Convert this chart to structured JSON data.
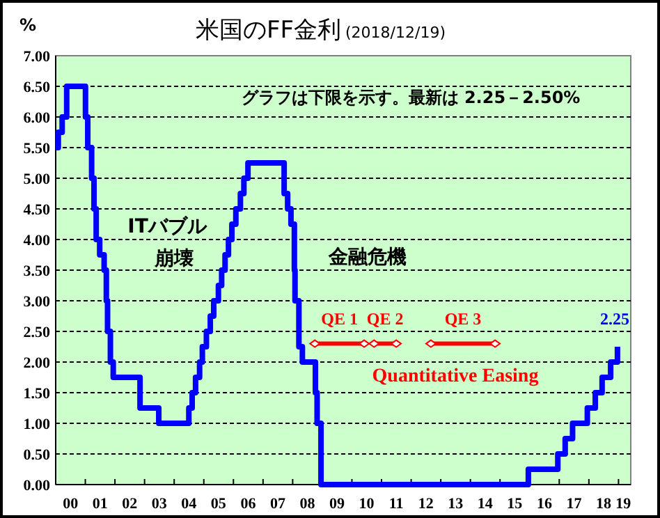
{
  "chart_data": {
    "type": "step",
    "title": "米国のFF金利",
    "subtitle": "(2018/12/19)",
    "ylabel": "%",
    "x": [
      "2000-01-01",
      "2000-02-02",
      "2000-03-21",
      "2000-05-16",
      "2001-01-03",
      "2001-01-31",
      "2001-03-20",
      "2001-04-18",
      "2001-05-15",
      "2001-06-27",
      "2001-08-21",
      "2001-09-17",
      "2001-10-02",
      "2001-11-06",
      "2001-12-11",
      "2002-11-06",
      "2003-06-25",
      "2004-06-30",
      "2004-08-10",
      "2004-09-21",
      "2004-11-10",
      "2004-12-14",
      "2005-02-02",
      "2005-03-22",
      "2005-05-03",
      "2005-06-30",
      "2005-08-09",
      "2005-09-20",
      "2005-11-01",
      "2005-12-13",
      "2006-01-31",
      "2006-03-28",
      "2006-05-10",
      "2006-06-29",
      "2007-09-18",
      "2007-10-31",
      "2007-12-11",
      "2008-01-22",
      "2008-01-30",
      "2008-03-18",
      "2008-04-30",
      "2008-10-08",
      "2008-10-29",
      "2008-12-16",
      "2015-12-16",
      "2016-12-14",
      "2017-03-15",
      "2017-06-14",
      "2017-12-13",
      "2018-03-21",
      "2018-06-13",
      "2018-09-26",
      "2018-12-19"
    ],
    "series": [
      {
        "color": "#0000ff",
        "values": [
          5.5,
          5.75,
          6.0,
          6.5,
          6.0,
          5.5,
          5.0,
          4.5,
          4.0,
          3.75,
          3.5,
          3.0,
          2.5,
          2.0,
          1.75,
          1.25,
          1.0,
          1.25,
          1.5,
          1.75,
          2.0,
          2.25,
          2.5,
          2.75,
          3.0,
          3.25,
          3.5,
          3.75,
          4.0,
          4.25,
          4.5,
          4.75,
          5.0,
          5.25,
          4.75,
          4.5,
          4.25,
          3.5,
          3.0,
          2.25,
          2.0,
          1.5,
          1.0,
          0.0,
          0.25,
          0.5,
          0.75,
          1.0,
          1.25,
          1.5,
          1.75,
          2.0,
          2.25
        ]
      },
      {
        "type": "line",
        "name": "QE 1",
        "color": "#ff0000",
        "marker": "diamond",
        "x": [
          "2008-10",
          "2010-06"
        ],
        "values": [
          2.3,
          2.3
        ]
      },
      {
        "type": "line",
        "name": "QE 2",
        "color": "#ff0000",
        "marker": "diamond",
        "x": [
          "2010-10",
          "2011-07"
        ],
        "values": [
          2.3,
          2.3
        ]
      },
      {
        "type": "line",
        "name": "QE 3",
        "color": "#ff0000",
        "marker": "diamond",
        "x": [
          "2012-09",
          "2014-11"
        ],
        "values": [
          2.3,
          2.3
        ]
      }
    ],
    "xlim": [
      "2000-01",
      "2019-06"
    ],
    "xticks": [
      {
        "value": "2000-01",
        "label": null
      },
      {
        "value": "2001-01",
        "label": null
      },
      {
        "value": "2002-01",
        "label": null
      },
      {
        "value": "2003-01",
        "label": null
      },
      {
        "value": "2004-01",
        "label": null
      },
      {
        "value": "2005-01",
        "label": null
      },
      {
        "value": "2006-01",
        "label": null
      },
      {
        "value": "2007-01",
        "label": null
      },
      {
        "value": "2008-01",
        "label": null
      },
      {
        "value": "2009-01",
        "label": null
      },
      {
        "value": "2010-01",
        "label": null
      },
      {
        "value": "2011-01",
        "label": null
      },
      {
        "value": "2012-01",
        "label": null
      },
      {
        "value": "2013-01",
        "label": null
      },
      {
        "value": "2014-01",
        "label": null
      },
      {
        "value": "2015-01",
        "label": null
      },
      {
        "value": "2016-01",
        "label": null
      },
      {
        "value": "2017-01",
        "label": null
      },
      {
        "value": "2018-01",
        "label": null
      },
      {
        "value": "2019-01",
        "label": null
      },
      {
        "value": "2000-07",
        "label": "00"
      },
      {
        "value": "2001-07",
        "label": "01"
      },
      {
        "value": "2002-07",
        "label": "02"
      },
      {
        "value": "2003-07",
        "label": "03"
      },
      {
        "value": "2004-07",
        "label": "04"
      },
      {
        "value": "2005-07",
        "label": "05"
      },
      {
        "value": "2006-07",
        "label": "06"
      },
      {
        "value": "2007-07",
        "label": "07"
      },
      {
        "value": "2008-07",
        "label": "08"
      },
      {
        "value": "2009-07",
        "label": "09"
      },
      {
        "value": "2010-07",
        "label": "10"
      },
      {
        "value": "2011-07",
        "label": "11"
      },
      {
        "value": "2012-07",
        "label": "12"
      },
      {
        "value": "2013-07",
        "label": "13"
      },
      {
        "value": "2014-07",
        "label": "14"
      },
      {
        "value": "2015-07",
        "label": "15"
      },
      {
        "value": "2016-07",
        "label": "16"
      },
      {
        "value": "2017-07",
        "label": "17"
      },
      {
        "value": "2018-07",
        "label": "18"
      },
      {
        "value": "2019-03",
        "label": "19"
      }
    ],
    "ylim": [
      0,
      7
    ],
    "yticks": [
      {
        "value": 0,
        "label": "0.00"
      },
      {
        "value": 0.5,
        "label": "0.50"
      },
      {
        "value": 1,
        "label": "1.00"
      },
      {
        "value": 1.5,
        "label": "1.50"
      },
      {
        "value": 2,
        "label": "2.00"
      },
      {
        "value": 2.5,
        "label": "2.50"
      },
      {
        "value": 3,
        "label": "3.00"
      },
      {
        "value": 3.5,
        "label": "3.50"
      },
      {
        "value": 4,
        "label": "4.00"
      },
      {
        "value": 4.5,
        "label": "4.50"
      },
      {
        "value": 5,
        "label": "5.00"
      },
      {
        "value": 5.5,
        "label": "5.50"
      },
      {
        "value": 6,
        "label": "6.00"
      },
      {
        "value": 6.5,
        "label": "6.50"
      },
      {
        "value": 7,
        "label": "7.00"
      }
    ],
    "grid": "y",
    "annotations": [
      "グラフは下限を示す。最新は 2.25－2.50%",
      "ITバブル",
      "崩壊",
      "金融危機",
      "Quantitative Easing",
      {
        "text": "2.25",
        "x": "2018-12-19",
        "y": 2.25
      }
    ]
  }
}
